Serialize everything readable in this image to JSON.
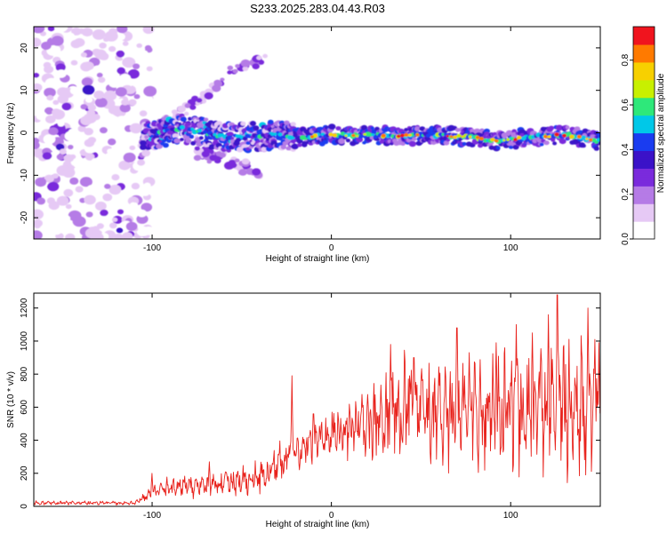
{
  "figure": {
    "title": "S233.2025.283.04.43.R03"
  },
  "colors": {
    "snr_line": "#e8221c",
    "axis": "#000000",
    "colormap": [
      "#ffffff",
      "#e6c9f5",
      "#b57be6",
      "#7a2bdc",
      "#3b12c8",
      "#1a3cf0",
      "#00c8e8",
      "#2ee87a",
      "#c8f000",
      "#f7d000",
      "#ff7a00",
      "#f0141e",
      "#ff1a8c"
    ]
  },
  "chart_data": [
    {
      "type": "heatmap",
      "title": "S233.2025.283.04.43.R03",
      "xlabel": "Height of straight line (km)",
      "ylabel": "Frequency (Hz)",
      "xlim": [
        -166,
        150
      ],
      "ylim": [
        -25,
        25
      ],
      "x_ticks": [
        -100,
        0,
        100
      ],
      "x_tick_labels": [
        "-100",
        "0",
        "100"
      ],
      "y_ticks": [
        -20,
        -10,
        0,
        10,
        20
      ],
      "y_tick_labels": [
        "-20",
        "-10",
        "0",
        "10",
        "20"
      ],
      "colorbar": {
        "label": "Normalized spectral amplitude",
        "range": [
          0,
          0.95
        ],
        "ticks": [
          0.0,
          0.2,
          0.4,
          0.6,
          0.8
        ],
        "tick_labels": [
          "0.0",
          "0.2",
          "0.4",
          "0.6",
          "0.8"
        ],
        "colormap": "rainbow"
      },
      "features": {
        "noise_region_km": [
          -166,
          -105
        ],
        "main_ridge": [
          [
            -105,
            -1
          ],
          [
            -95,
            0
          ],
          [
            -85,
            1
          ],
          [
            -75,
            0.5
          ],
          [
            -60,
            -1
          ],
          [
            -45,
            -1
          ],
          [
            -30,
            -0.5
          ],
          [
            -20,
            -1
          ],
          [
            0,
            -0.5
          ],
          [
            20,
            -0.6
          ],
          [
            40,
            -0.6
          ],
          [
            60,
            -0.6
          ],
          [
            80,
            -1.2
          ],
          [
            95,
            -2
          ],
          [
            110,
            -1
          ],
          [
            130,
            -0.5
          ],
          [
            150,
            -2
          ]
        ],
        "rising_branch": [
          [
            -105,
            0
          ],
          [
            -90,
            3
          ],
          [
            -80,
            6
          ],
          [
            -70,
            9
          ],
          [
            -60,
            13
          ],
          [
            -50,
            16
          ],
          [
            -35,
            17
          ]
        ],
        "falling_branch": [
          [
            -75,
            -5
          ],
          [
            -60,
            -6
          ],
          [
            -50,
            -8
          ],
          [
            -40,
            -9
          ]
        ]
      }
    },
    {
      "type": "line",
      "title": "",
      "xlabel": "Height of straight line (km)",
      "ylabel": "SNR (10 * v/v)",
      "xlim": [
        -166,
        150
      ],
      "ylim": [
        0,
        1290
      ],
      "x_ticks": [
        -100,
        0,
        100
      ],
      "x_tick_labels": [
        "-100",
        "0",
        "100"
      ],
      "y_ticks": [
        0,
        200,
        400,
        600,
        800,
        1000,
        1200
      ],
      "y_tick_labels": [
        "0",
        "200",
        "400",
        "600",
        "800",
        "1000",
        "1200"
      ],
      "series": [
        {
          "name": "SNR",
          "envelope": {
            "x": [
              -166,
              -110,
              -98,
              -88,
              -75,
              -60,
              -45,
              -35,
              -28,
              -20,
              -10,
              0,
              10,
              20,
              30,
              40,
              50,
              60,
              70,
              80,
              90,
              100,
              110,
              120,
              130,
              140,
              150
            ],
            "mean": [
              20,
              20,
              90,
              120,
              120,
              140,
              160,
              200,
              280,
              330,
              390,
              430,
              470,
              480,
              520,
              600,
              580,
              560,
              590,
              570,
              560,
              600,
              620,
              600,
              620,
              590,
              600
            ],
            "amplitude": [
              12,
              12,
              40,
              70,
              70,
              80,
              90,
              110,
              120,
              110,
              120,
              140,
              180,
              220,
              260,
              290,
              320,
              320,
              340,
              360,
              360,
              380,
              380,
              390,
              400,
              400,
              400
            ]
          },
          "peaks": [
            [
              -100,
              200
            ],
            [
              -68,
              270
            ],
            [
              -33,
              260
            ],
            [
              -22,
              790
            ],
            [
              -10,
              560
            ],
            [
              33,
              980
            ],
            [
              46,
              900
            ],
            [
              70,
              1080
            ],
            [
              77,
              930
            ],
            [
              92,
              990
            ],
            [
              103,
              1100
            ],
            [
              112,
              1050
            ],
            [
              121,
              1160
            ],
            [
              126,
              1280
            ],
            [
              143,
              1200
            ],
            [
              147,
              1010
            ]
          ]
        }
      ]
    }
  ]
}
